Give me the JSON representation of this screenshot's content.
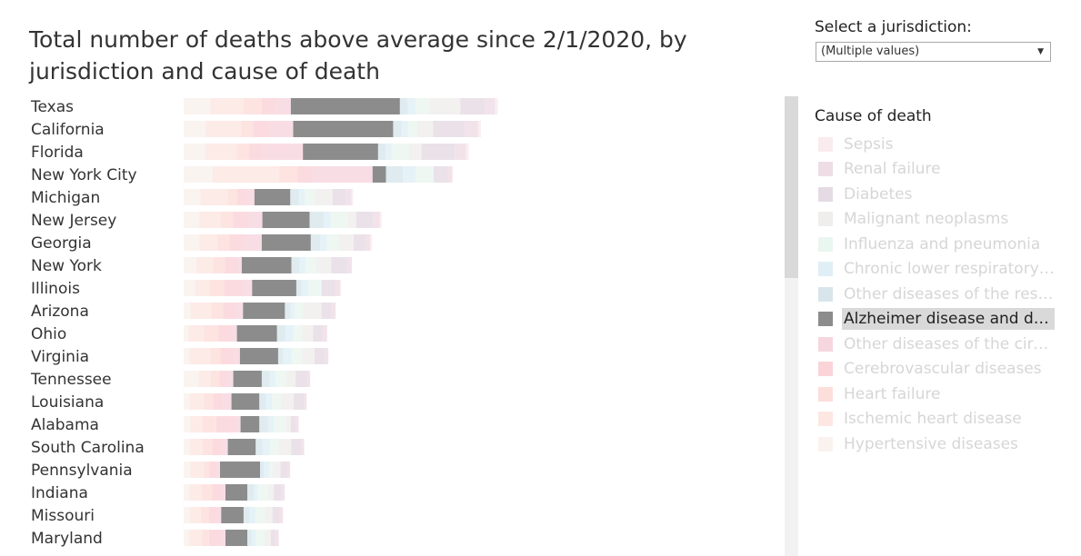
{
  "title": "Total number of deaths above average since 2/1/2020, by jurisdiction and cause of death",
  "selector": {
    "label": "Select a jurisdiction:",
    "value": "(Multiple values)"
  },
  "legend": {
    "title": "Cause of death",
    "items": [
      {
        "label": "Sepsis",
        "color": "#e7a3b4",
        "highlighted": false
      },
      {
        "label": "Renal failure",
        "color": "#b5668b",
        "highlighted": false
      },
      {
        "label": "Diabetes",
        "color": "#8a5a83",
        "highlighted": false
      },
      {
        "label": "Malignant neoplasms",
        "color": "#bab0ac",
        "highlighted": false
      },
      {
        "label": "Influenza and pneumonia",
        "color": "#9fd4b9",
        "highlighted": false
      },
      {
        "label": "Chronic lower respiratory diseases",
        "color": "#6fb7d1",
        "highlighted": false
      },
      {
        "label": "Other diseases of the respiratory system",
        "color": "#4f8fa8",
        "highlighted": false
      },
      {
        "label": "Alzheimer disease and dementia",
        "color": "#8c8c8c",
        "highlighted": true
      },
      {
        "label": "Other diseases of the circulatory system",
        "color": "#d6436f",
        "highlighted": false
      },
      {
        "label": "Cerebrovascular diseases",
        "color": "#e8394e",
        "highlighted": false
      },
      {
        "label": "Heart failure",
        "color": "#f26a5a",
        "highlighted": false
      },
      {
        "label": "Ischemic heart disease",
        "color": "#f5917d",
        "highlighted": false
      },
      {
        "label": "Hypertensive diseases",
        "color": "#e6c2b3",
        "highlighted": false
      }
    ]
  },
  "chart_data": {
    "type": "bar",
    "orientation": "horizontal",
    "stacked": true,
    "highlighted_series": "Alzheimer disease and dementia",
    "categories": [
      "Texas",
      "California",
      "Florida",
      "New York City",
      "Michigan",
      "New Jersey",
      "Georgia",
      "New York",
      "Illinois",
      "Arizona",
      "Ohio",
      "Virginia",
      "Tennessee",
      "Louisiana",
      "Alabama",
      "South Carolina",
      "Pennsylvania",
      "Indiana",
      "Missouri",
      "Maryland"
    ],
    "series": [
      {
        "name": "Hypertensive diseases",
        "color": "#e6c2b3",
        "values": [
          880,
          720,
          720,
          960,
          560,
          520,
          520,
          420,
          380,
          220,
          160,
          180,
          500,
          200,
          220,
          200,
          220,
          180,
          200,
          180
        ]
      },
      {
        "name": "Ischemic heart disease",
        "color": "#f5917d",
        "values": [
          1100,
          1200,
          1040,
          2200,
          900,
          700,
          600,
          560,
          500,
          700,
          500,
          700,
          400,
          480,
          400,
          440,
          440,
          420,
          380,
          440
        ]
      },
      {
        "name": "Heart failure",
        "color": "#f26a5a",
        "values": [
          600,
          380,
          400,
          600,
          300,
          420,
          400,
          380,
          460,
          380,
          500,
          340,
          280,
          300,
          460,
          300,
          200,
          340,
          260,
          220
        ]
      },
      {
        "name": "Cerebrovascular diseases",
        "color": "#e8394e",
        "values": [
          460,
          520,
          440,
          480,
          320,
          460,
          440,
          380,
          600,
          420,
          400,
          420,
          220,
          340,
          600,
          340,
          240,
          320,
          280,
          360
        ]
      },
      {
        "name": "Other diseases of the circulatory system",
        "color": "#d6436f",
        "values": [
          500,
          800,
          1340,
          2000,
          260,
          500,
          620,
          180,
          320,
          240,
          200,
          220,
          240,
          260,
          200,
          180,
          100,
          120,
          120,
          180
        ]
      },
      {
        "name": "Alzheimer disease and dementia",
        "color": "#8c8c8c",
        "values": [
          3600,
          3300,
          2480,
          440,
          1180,
          1560,
          1620,
          1640,
          1460,
          1380,
          1320,
          1260,
          940,
          920,
          620,
          920,
          1320,
          720,
          740,
          720
        ]
      },
      {
        "name": "Other diseases of the respiratory system",
        "color": "#4f8fa8",
        "values": [
          240,
          260,
          240,
          560,
          280,
          460,
          300,
          260,
          160,
          180,
          260,
          160,
          260,
          200,
          280,
          220,
          120,
          200,
          180,
          140
        ]
      },
      {
        "name": "Chronic lower respiratory diseases",
        "color": "#6fb7d1",
        "values": [
          260,
          220,
          200,
          420,
          200,
          240,
          220,
          200,
          220,
          140,
          280,
          280,
          180,
          220,
          200,
          240,
          180,
          140,
          200,
          140
        ]
      },
      {
        "name": "Influenza and pneumonia",
        "color": "#9fd4b9",
        "values": [
          500,
          320,
          580,
          600,
          340,
          560,
          400,
          360,
          460,
          300,
          300,
          360,
          380,
          300,
          400,
          300,
          120,
          360,
          340,
          300
        ]
      },
      {
        "name": "Malignant neoplasms",
        "color": "#bab0ac",
        "values": [
          1000,
          520,
          420,
          0,
          580,
          280,
          500,
          500,
          0,
          600,
          360,
          400,
          300,
          420,
          160,
          420,
          260,
          180,
          240,
          200
        ]
      },
      {
        "name": "Diabetes",
        "color": "#8a5a83",
        "values": [
          800,
          1040,
          1100,
          440,
          420,
          560,
          380,
          520,
          440,
          300,
          300,
          340,
          360,
          320,
          140,
          300,
          200,
          240,
          220,
          140
        ]
      },
      {
        "name": "Renal failure",
        "color": "#b5668b",
        "values": [
          340,
          440,
          360,
          180,
          200,
          220,
          160,
          160,
          180,
          160,
          160,
          120,
          120,
          100,
          120,
          120,
          120,
          120,
          120,
          120
        ]
      },
      {
        "name": "Sepsis",
        "color": "#e7a3b4",
        "values": [
          100,
          100,
          100,
          0,
          60,
          60,
          60,
          0,
          0,
          0,
          0,
          0,
          0,
          0,
          0,
          0,
          0,
          0,
          0,
          0
        ]
      }
    ]
  }
}
